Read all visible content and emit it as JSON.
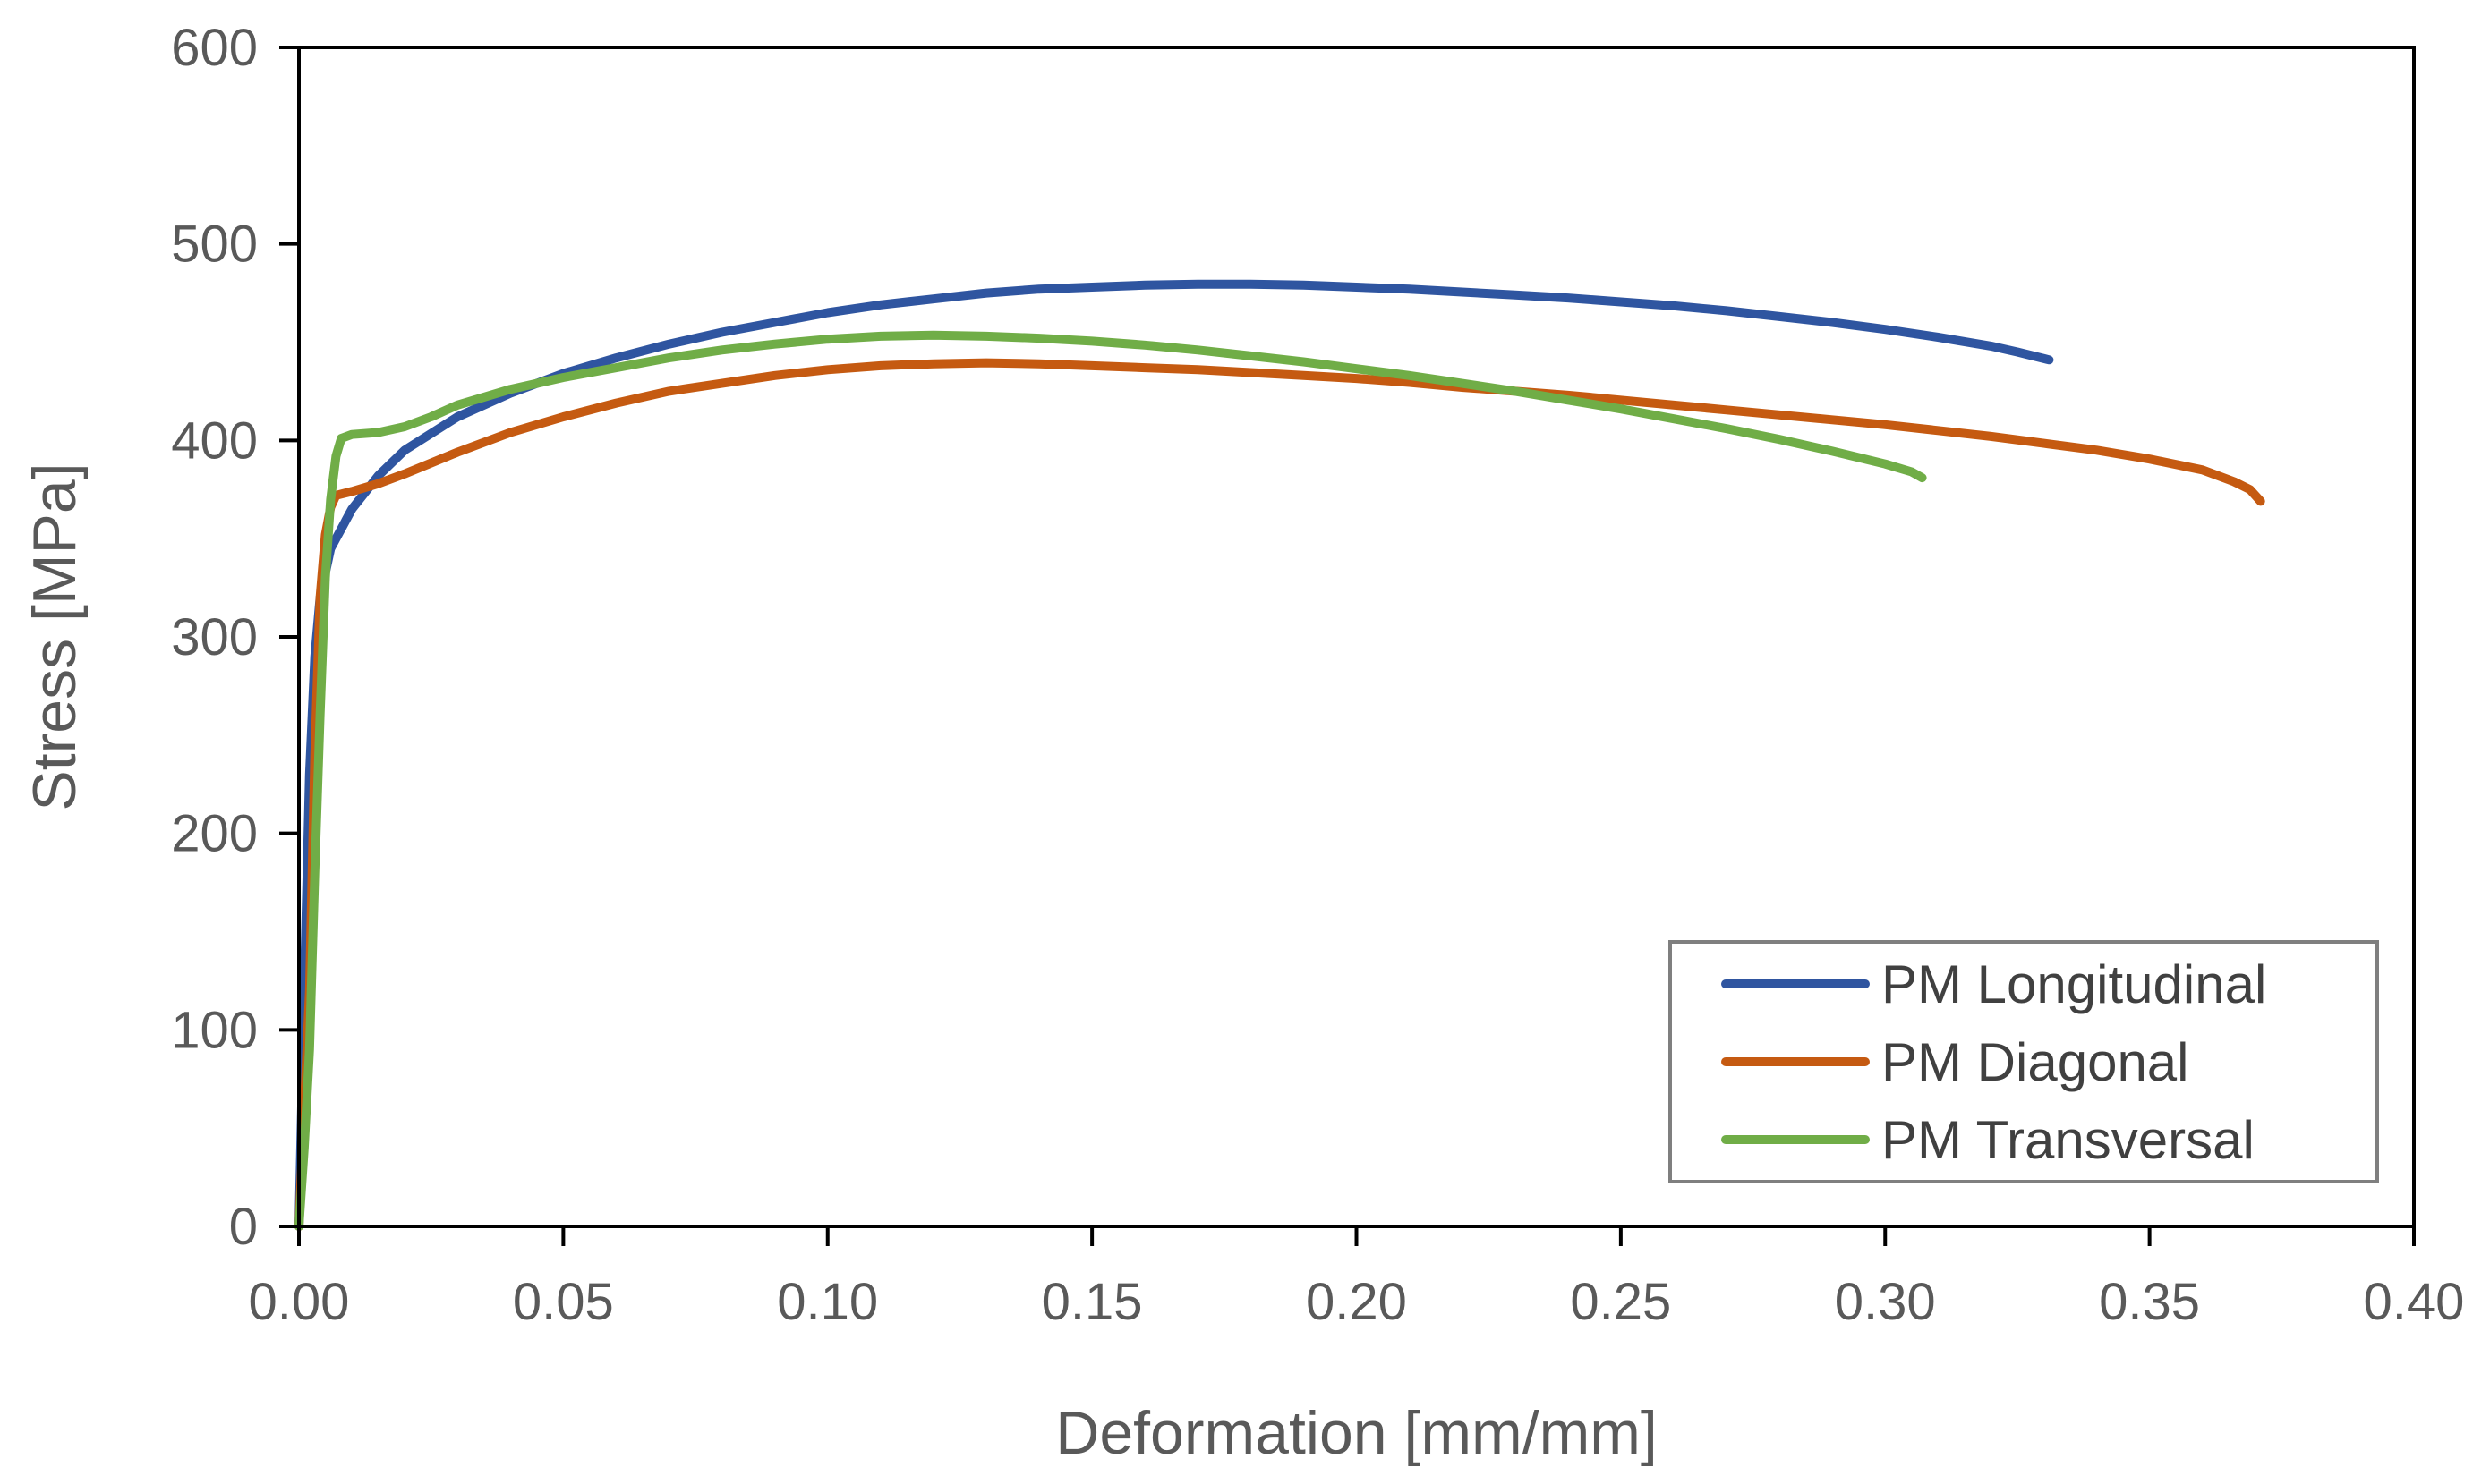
{
  "chart_data": {
    "type": "line",
    "title": "",
    "xlabel": "Deformation [mm/mm]",
    "ylabel": "Stress [MPa]",
    "xlim": [
      0,
      0.4
    ],
    "ylim": [
      0,
      600
    ],
    "x_ticks": [
      0,
      0.05,
      0.1,
      0.15,
      0.2,
      0.25,
      0.3,
      0.35,
      0.4
    ],
    "x_tick_labels": [
      "0.00",
      "0.05",
      "0.10",
      "0.15",
      "0.20",
      "0.25",
      "0.30",
      "0.35",
      "0.40"
    ],
    "y_ticks": [
      0,
      100,
      200,
      300,
      400,
      500,
      600
    ],
    "y_tick_labels": [
      "0",
      "100",
      "200",
      "300",
      "400",
      "500",
      "600"
    ],
    "grid": false,
    "legend_position": "bottom-right",
    "series": [
      {
        "name": "PM Longitudinal",
        "color": "#2f55a0",
        "points": [
          [
            0,
            0
          ],
          [
            0.001,
            120
          ],
          [
            0.002,
            230
          ],
          [
            0.003,
            290
          ],
          [
            0.004,
            320
          ],
          [
            0.006,
            345
          ],
          [
            0.008,
            355
          ],
          [
            0.01,
            365
          ],
          [
            0.015,
            382
          ],
          [
            0.02,
            395
          ],
          [
            0.03,
            412
          ],
          [
            0.04,
            424
          ],
          [
            0.05,
            434
          ],
          [
            0.06,
            442
          ],
          [
            0.07,
            449
          ],
          [
            0.08,
            455
          ],
          [
            0.09,
            460
          ],
          [
            0.1,
            465
          ],
          [
            0.11,
            469
          ],
          [
            0.12,
            472
          ],
          [
            0.13,
            475
          ],
          [
            0.14,
            477
          ],
          [
            0.15,
            478
          ],
          [
            0.16,
            479
          ],
          [
            0.17,
            479.5
          ],
          [
            0.18,
            479.5
          ],
          [
            0.19,
            479
          ],
          [
            0.2,
            478
          ],
          [
            0.21,
            477
          ],
          [
            0.22,
            475.5
          ],
          [
            0.23,
            474
          ],
          [
            0.24,
            472.5
          ],
          [
            0.25,
            470.5
          ],
          [
            0.26,
            468.5
          ],
          [
            0.27,
            466
          ],
          [
            0.28,
            463
          ],
          [
            0.29,
            460
          ],
          [
            0.3,
            456.5
          ],
          [
            0.31,
            452.5
          ],
          [
            0.32,
            448
          ],
          [
            0.325,
            445
          ],
          [
            0.331,
            441
          ]
        ]
      },
      {
        "name": "PM Diagonal",
        "color": "#c55a11",
        "points": [
          [
            0,
            0
          ],
          [
            0.001,
            60
          ],
          [
            0.002,
            120
          ],
          [
            0.003,
            240
          ],
          [
            0.004,
            320
          ],
          [
            0.005,
            352
          ],
          [
            0.006,
            366
          ],
          [
            0.007,
            372
          ],
          [
            0.01,
            374
          ],
          [
            0.015,
            378
          ],
          [
            0.02,
            383
          ],
          [
            0.03,
            394
          ],
          [
            0.04,
            404
          ],
          [
            0.05,
            412
          ],
          [
            0.06,
            419
          ],
          [
            0.07,
            425
          ],
          [
            0.08,
            429
          ],
          [
            0.09,
            433
          ],
          [
            0.1,
            436
          ],
          [
            0.11,
            438
          ],
          [
            0.12,
            439
          ],
          [
            0.13,
            439.5
          ],
          [
            0.14,
            439
          ],
          [
            0.15,
            438
          ],
          [
            0.16,
            437
          ],
          [
            0.17,
            436
          ],
          [
            0.18,
            434.5
          ],
          [
            0.19,
            433
          ],
          [
            0.2,
            431.5
          ],
          [
            0.21,
            429.5
          ],
          [
            0.22,
            427
          ],
          [
            0.23,
            425
          ],
          [
            0.24,
            423
          ],
          [
            0.25,
            420.5
          ],
          [
            0.26,
            418
          ],
          [
            0.27,
            415.5
          ],
          [
            0.28,
            413
          ],
          [
            0.29,
            410.5
          ],
          [
            0.3,
            408
          ],
          [
            0.31,
            405
          ],
          [
            0.32,
            402
          ],
          [
            0.33,
            398.5
          ],
          [
            0.34,
            395
          ],
          [
            0.35,
            390.5
          ],
          [
            0.36,
            385
          ],
          [
            0.366,
            379
          ],
          [
            0.369,
            375
          ],
          [
            0.371,
            369
          ]
        ]
      },
      {
        "name": "PM Transversal",
        "color": "#70ad47",
        "points": [
          [
            0,
            0
          ],
          [
            0.001,
            40
          ],
          [
            0.002,
            90
          ],
          [
            0.003,
            180
          ],
          [
            0.004,
            260
          ],
          [
            0.005,
            330
          ],
          [
            0.006,
            370
          ],
          [
            0.007,
            392
          ],
          [
            0.008,
            401
          ],
          [
            0.01,
            403
          ],
          [
            0.015,
            404
          ],
          [
            0.02,
            407
          ],
          [
            0.025,
            412
          ],
          [
            0.03,
            418
          ],
          [
            0.04,
            426
          ],
          [
            0.05,
            432
          ],
          [
            0.06,
            437
          ],
          [
            0.07,
            442
          ],
          [
            0.08,
            446
          ],
          [
            0.09,
            449
          ],
          [
            0.1,
            451.5
          ],
          [
            0.11,
            453
          ],
          [
            0.12,
            453.5
          ],
          [
            0.13,
            453
          ],
          [
            0.14,
            452
          ],
          [
            0.15,
            450.5
          ],
          [
            0.16,
            448.5
          ],
          [
            0.17,
            446
          ],
          [
            0.18,
            443
          ],
          [
            0.19,
            440
          ],
          [
            0.2,
            436.5
          ],
          [
            0.21,
            433
          ],
          [
            0.22,
            429
          ],
          [
            0.23,
            425
          ],
          [
            0.24,
            420.5
          ],
          [
            0.25,
            416
          ],
          [
            0.26,
            411
          ],
          [
            0.27,
            406
          ],
          [
            0.28,
            400.5
          ],
          [
            0.29,
            394.5
          ],
          [
            0.3,
            388
          ],
          [
            0.305,
            384
          ],
          [
            0.307,
            381
          ]
        ]
      }
    ]
  }
}
